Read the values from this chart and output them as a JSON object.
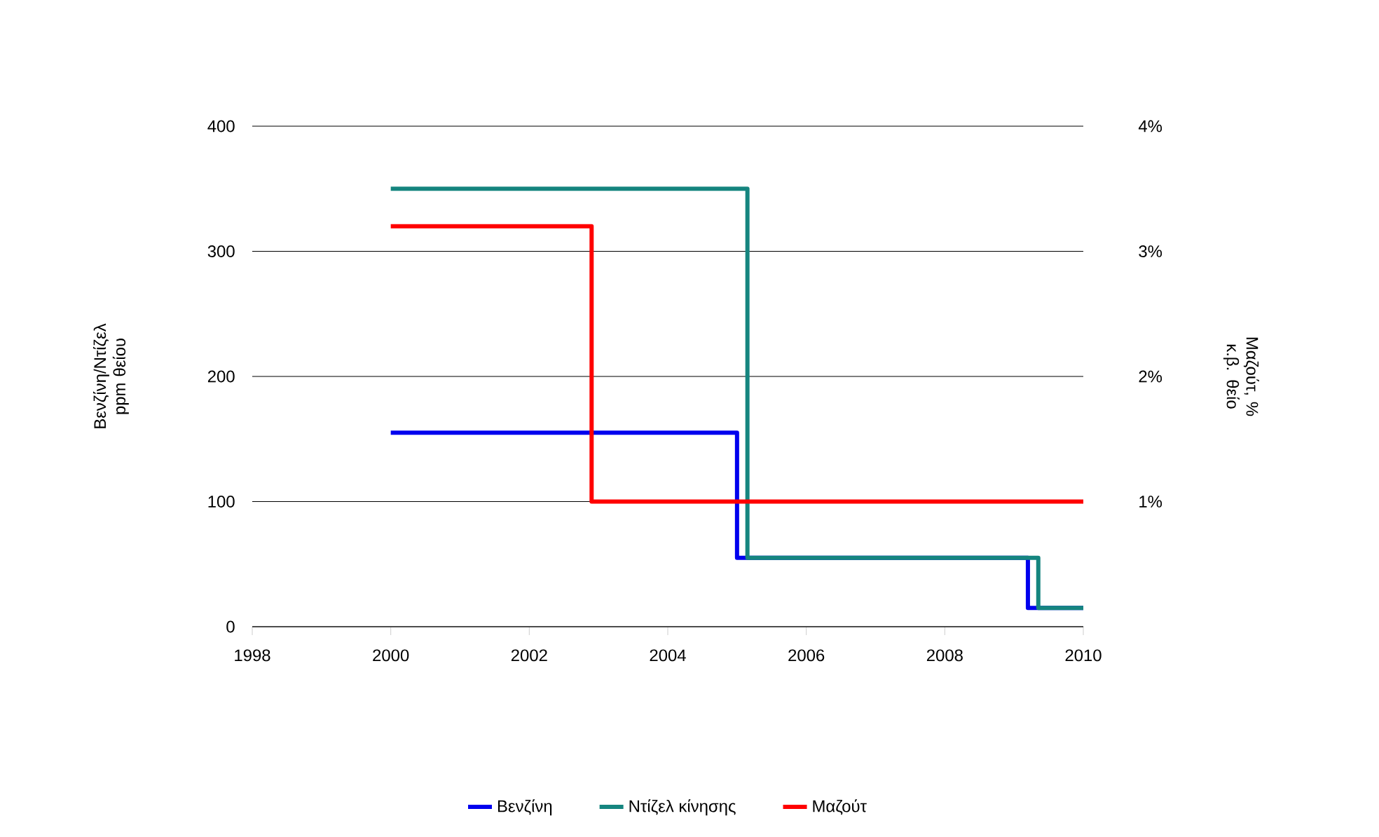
{
  "chart_data": {
    "type": "step",
    "ylabel": "Βενζίνη/Ντίζελ ppm θείου",
    "y2label": "Μαζούτ, % κ.β. θείο",
    "xlim": [
      1998,
      2010
    ],
    "xticks": [
      1998,
      2000,
      2002,
      2004,
      2006,
      2008,
      2010
    ],
    "ylim": [
      0,
      400
    ],
    "yticks": [
      0,
      100,
      200,
      300,
      400
    ],
    "y2lim": [
      0,
      4
    ],
    "y2ticks": [
      {
        "value": 1,
        "label": "1%"
      },
      {
        "value": 2,
        "label": "2%"
      },
      {
        "value": 3,
        "label": "3%"
      },
      {
        "value": 4,
        "label": "4%"
      }
    ],
    "grid": "y",
    "legend": "bottom",
    "series": [
      {
        "name": "Βενζίνη",
        "color": "#0000ee",
        "x": [
          2000,
          2005,
          2009.2,
          2010
        ],
        "values": [
          155,
          55,
          15,
          15
        ]
      },
      {
        "name": "Ντίζελ κίνησης",
        "color": "#15857f",
        "x": [
          2000,
          2005.15,
          2009.35,
          2010
        ],
        "values": [
          350,
          55,
          15,
          15
        ]
      },
      {
        "name": "Μαζούτ",
        "color": "#ff0000",
        "axis": "y2",
        "x": [
          2000,
          2002.9,
          2010
        ],
        "values": [
          3.2,
          1.0,
          1.0
        ]
      }
    ]
  }
}
